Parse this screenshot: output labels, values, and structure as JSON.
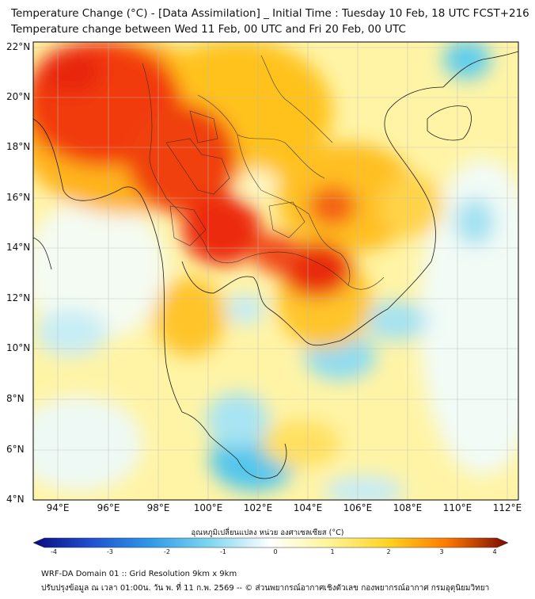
{
  "title": {
    "line1": "Temperature Change (°C) - [Data Assimilation] _ Initial Time : Tuesday 10 Feb, 18 UTC FCST+216",
    "line2": "Temperature change between Wed 11 Feb, 00 UTC and Fri 20 Feb, 00 UTC"
  },
  "map": {
    "lat_labels": [
      "22°N",
      "20°N",
      "18°N",
      "16°N",
      "14°N",
      "12°N",
      "10°N",
      "8°N",
      "6°N",
      "4°N"
    ],
    "lon_labels": [
      "94°E",
      "96°E",
      "98°E",
      "100°E",
      "102°E",
      "104°E",
      "106°E",
      "108°E",
      "110°E",
      "112°E"
    ]
  },
  "colorbar": {
    "title": "อุณหภูมิเปลี่ยนแปลง หน่วย องศาเซลเซียส (°C)",
    "ticks": [
      "-4",
      "-3",
      "-2",
      "-1",
      "0",
      "1",
      "2",
      "3",
      "4"
    ]
  },
  "footer": {
    "line1": "WRF-DA Domain 01 :: Grid Resolution 9km x 9km",
    "line2": "ปรับปรุงข้อมูล ณ เวลา 01:00น. วัน พ. ที่ 11 ก.พ. 2569 -- © ส่วนพยากรณ์อากาศเชิงตัวเลข กองพยากรณ์อากาศ กรมอุตุนิยมวิทยา"
  },
  "colors": {
    "neg4": "#0a0a80",
    "neg3": "#1f4fd0",
    "neg2": "#2f9be8",
    "neg1": "#7ed6f0",
    "zero": "#ffffff",
    "pos1": "#fff59a",
    "pos2": "#ffd21f",
    "pos3": "#ff7a00",
    "pos4": "#7a0a00",
    "hot": "#f02a10"
  }
}
